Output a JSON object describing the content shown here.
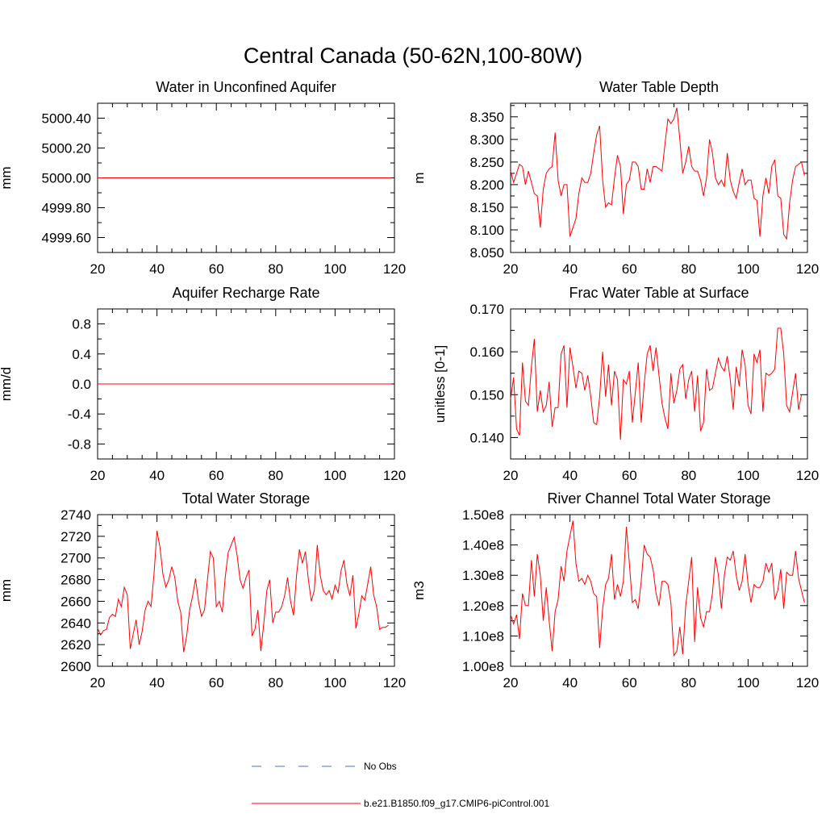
{
  "figure": {
    "title": "Central Canada (50-62N,100-80W)",
    "line_color": "#ff0000",
    "obs_color": "#4a6fd0"
  },
  "legend": {
    "items": [
      {
        "label": "No Obs",
        "style": "dashed",
        "color": "#4a6fd0"
      },
      {
        "label": "b.e21.B1850.f09_g17.CMIP6-piControl.001",
        "style": "solid",
        "color": "#ff0000"
      }
    ]
  },
  "chart_data": [
    {
      "type": "line",
      "title": "Water in Unconfined Aquifer",
      "ylabel": "mm",
      "xlim": [
        20,
        120
      ],
      "ylim": [
        4999.5,
        5000.5
      ],
      "xticks": [
        20,
        40,
        60,
        80,
        100,
        120
      ],
      "yticks": [
        4999.6,
        4999.8,
        5000.0,
        5000.2,
        5000.4
      ],
      "ytick_labels": [
        "4999.60",
        "4999.80",
        "5000.00",
        "5000.20",
        "5000.40"
      ],
      "x_start": 20,
      "constant": 5000.0,
      "n": 100,
      "values": []
    },
    {
      "type": "line",
      "title": "Water Table Depth",
      "ylabel": "m",
      "xlim": [
        20,
        120
      ],
      "ylim": [
        8.05,
        8.38
      ],
      "xticks": [
        20,
        40,
        60,
        80,
        100,
        120
      ],
      "yticks": [
        8.05,
        8.1,
        8.15,
        8.2,
        8.25,
        8.3,
        8.35
      ],
      "ytick_labels": [
        "8.050",
        "8.100",
        "8.150",
        "8.200",
        "8.250",
        "8.300",
        "8.350"
      ],
      "x_start": 20,
      "values": [
        8.23,
        8.205,
        8.225,
        8.245,
        8.24,
        8.2,
        8.23,
        8.205,
        8.18,
        8.175,
        8.105,
        8.19,
        8.225,
        8.235,
        8.24,
        8.315,
        8.21,
        8.175,
        8.2,
        8.2,
        8.085,
        8.105,
        8.125,
        8.18,
        8.215,
        8.205,
        8.205,
        8.225,
        8.27,
        8.31,
        8.33,
        8.21,
        8.15,
        8.16,
        8.155,
        8.215,
        8.265,
        8.24,
        8.135,
        8.2,
        8.21,
        8.25,
        8.25,
        8.24,
        8.19,
        8.19,
        8.235,
        8.205,
        8.24,
        8.24,
        8.235,
        8.23,
        8.29,
        8.345,
        8.335,
        8.345,
        8.37,
        8.3,
        8.225,
        8.25,
        8.285,
        8.24,
        8.23,
        8.23,
        8.21,
        8.175,
        8.215,
        8.3,
        8.27,
        8.215,
        8.2,
        8.21,
        8.195,
        8.27,
        8.21,
        8.185,
        8.17,
        8.205,
        8.235,
        8.2,
        8.21,
        8.21,
        8.17,
        8.165,
        8.085,
        8.175,
        8.215,
        8.18,
        8.24,
        8.255,
        8.175,
        8.17,
        8.09,
        8.08,
        8.16,
        8.21,
        8.24,
        8.245,
        8.25,
        8.22
      ]
    },
    {
      "type": "line",
      "title": "Aquifer Recharge Rate",
      "ylabel": "mm/d",
      "xlim": [
        20,
        120
      ],
      "ylim": [
        -1.0,
        1.0
      ],
      "xticks": [
        20,
        40,
        60,
        80,
        100,
        120
      ],
      "yticks": [
        -0.8,
        -0.4,
        0.0,
        0.4,
        0.8
      ],
      "ytick_labels": [
        "-0.8",
        "-0.4",
        "0.0",
        "0.4",
        "0.8"
      ],
      "x_start": 20,
      "constant": 0.0,
      "n": 100,
      "values": []
    },
    {
      "type": "line",
      "title": "Frac Water Table at Surface",
      "ylabel": "unitless [0-1]",
      "xlim": [
        20,
        120
      ],
      "ylim": [
        0.135,
        0.17
      ],
      "xticks": [
        20,
        40,
        60,
        80,
        100,
        120
      ],
      "yticks": [
        0.14,
        0.15,
        0.16,
        0.17
      ],
      "ytick_labels": [
        "0.140",
        "0.150",
        "0.160",
        "0.170"
      ],
      "x_start": 20,
      "values": [
        0.149,
        0.154,
        0.142,
        0.1405,
        0.1575,
        0.1485,
        0.1475,
        0.1565,
        0.163,
        0.146,
        0.151,
        0.146,
        0.1475,
        0.153,
        0.1425,
        0.147,
        0.147,
        0.1595,
        0.1615,
        0.147,
        0.161,
        0.1565,
        0.1515,
        0.1555,
        0.155,
        0.151,
        0.1545,
        0.1495,
        0.1435,
        0.143,
        0.1495,
        0.16,
        0.1495,
        0.157,
        0.1475,
        0.1555,
        0.1535,
        0.1395,
        0.1535,
        0.1525,
        0.1555,
        0.1435,
        0.1505,
        0.1575,
        0.1435,
        0.1525,
        0.1595,
        0.1615,
        0.1555,
        0.161,
        0.1545,
        0.148,
        0.1445,
        0.142,
        0.155,
        0.148,
        0.151,
        0.156,
        0.157,
        0.149,
        0.1535,
        0.1555,
        0.146,
        0.1545,
        0.1415,
        0.1435,
        0.156,
        0.151,
        0.1515,
        0.155,
        0.1585,
        0.1565,
        0.1555,
        0.159,
        0.1535,
        0.1465,
        0.1565,
        0.152,
        0.1605,
        0.157,
        0.1475,
        0.1455,
        0.1595,
        0.1575,
        0.1605,
        0.146,
        0.155,
        0.1545,
        0.155,
        0.156,
        0.1655,
        0.1655,
        0.1595,
        0.1475,
        0.146,
        0.1505,
        0.155,
        0.1465,
        0.15
      ]
    },
    {
      "type": "line",
      "title": "Total Water Storage",
      "ylabel": "mm",
      "xlim": [
        20,
        120
      ],
      "ylim": [
        2600,
        2740
      ],
      "xticks": [
        20,
        40,
        60,
        80,
        100,
        120
      ],
      "yticks": [
        2600,
        2620,
        2640,
        2660,
        2680,
        2700,
        2720,
        2740
      ],
      "ytick_labels": [
        "2600",
        "2620",
        "2640",
        "2660",
        "2680",
        "2700",
        "2720",
        "2740"
      ],
      "x_start": 20,
      "values": [
        2635,
        2629,
        2633,
        2634,
        2645,
        2648,
        2646,
        2662,
        2655,
        2673,
        2666,
        2616,
        2630,
        2643,
        2620,
        2632,
        2652,
        2660,
        2655,
        2685,
        2725,
        2710,
        2685,
        2673,
        2680,
        2692,
        2682,
        2660,
        2650,
        2613,
        2628,
        2652,
        2665,
        2681,
        2660,
        2646,
        2652,
        2680,
        2706,
        2700,
        2655,
        2660,
        2650,
        2682,
        2705,
        2712,
        2719,
        2702,
        2680,
        2672,
        2682,
        2689,
        2628,
        2634,
        2652,
        2614,
        2640,
        2670,
        2680,
        2640,
        2650,
        2650,
        2655,
        2665,
        2682,
        2660,
        2647,
        2684,
        2708,
        2695,
        2706,
        2680,
        2660,
        2670,
        2712,
        2684,
        2670,
        2666,
        2670,
        2662,
        2675,
        2668,
        2688,
        2698,
        2676,
        2665,
        2684,
        2635,
        2648,
        2665,
        2661,
        2676,
        2692,
        2666,
        2655,
        2634,
        2636,
        2636,
        2638
      ]
    },
    {
      "type": "line",
      "title": "River Channel Total Water Storage",
      "ylabel": "m3",
      "xlim": [
        20,
        120
      ],
      "ylim": [
        100000000.0,
        150000000.0
      ],
      "xticks": [
        20,
        40,
        60,
        80,
        100,
        120
      ],
      "yticks": [
        100000000.0,
        110000000.0,
        120000000.0,
        130000000.0,
        140000000.0,
        150000000.0
      ],
      "ytick_labels": [
        "1.00e8",
        "1.10e8",
        "1.20e8",
        "1.30e8",
        "1.40e8",
        "1.50e8"
      ],
      "x_start": 20,
      "values": [
        117000000,
        114000000,
        117000000,
        109000000,
        124000000,
        120000000,
        120000000,
        135000000,
        123000000,
        137000000,
        130000000,
        115000000,
        126000000,
        115000000,
        105000000,
        118000000,
        122000000,
        133000000,
        128000000,
        138000000,
        143000000,
        148000000,
        134000000,
        128000000,
        129000000,
        127000000,
        130000000,
        128000000,
        124000000,
        123000000,
        106000000,
        119000000,
        127000000,
        129000000,
        137000000,
        122000000,
        127000000,
        123000000,
        128000000,
        146000000,
        134000000,
        121000000,
        122000000,
        119000000,
        128000000,
        140000000,
        137000000,
        136000000,
        132000000,
        124000000,
        120000000,
        128000000,
        128000000,
        127000000,
        121000000,
        103500000,
        105000000,
        113000000,
        104000000,
        120000000,
        128000000,
        136000000,
        108000000,
        126000000,
        116000000,
        113000000,
        118000000,
        118000000,
        124000000,
        136000000,
        130000000,
        119000000,
        130000000,
        136000000,
        135000000,
        138000000,
        130000000,
        125000000,
        128000000,
        137000000,
        127000000,
        121000000,
        127000000,
        126000000,
        126000000,
        128000000,
        134000000,
        131000000,
        134000000,
        122000000,
        125000000,
        132000000,
        119000000,
        131000000,
        130000000,
        130000000,
        138000000,
        129000000,
        125000000,
        121000000
      ]
    }
  ]
}
